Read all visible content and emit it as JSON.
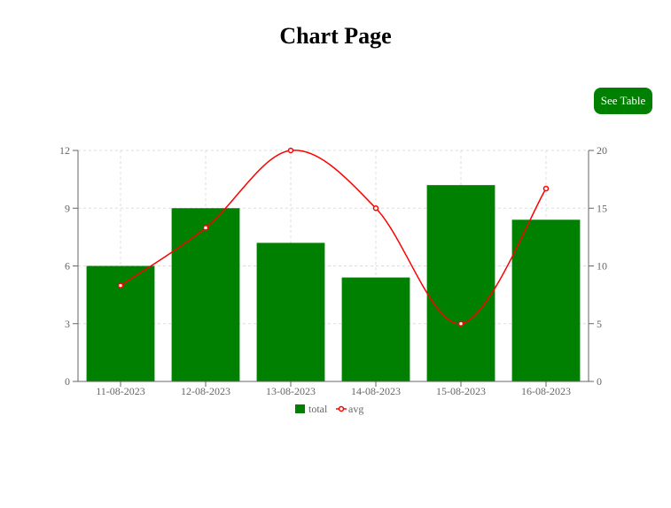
{
  "page": {
    "title": "Chart Page",
    "see_table_label": "See Table"
  },
  "colors": {
    "bar": "#008000",
    "line": "#ff0000",
    "grid": "#dddddd",
    "axis": "#666666"
  },
  "chart_data": {
    "type": "bar",
    "categories": [
      "11-08-2023",
      "12-08-2023",
      "13-08-2023",
      "14-08-2023",
      "15-08-2023",
      "16-08-2023"
    ],
    "series": [
      {
        "name": "total",
        "type": "bar",
        "axis": "left",
        "values": [
          6,
          9,
          7.2,
          5.4,
          10.2,
          8.4
        ]
      },
      {
        "name": "avg",
        "type": "line",
        "axis": "right",
        "values": [
          8.3,
          13.3,
          20,
          15,
          5,
          16.7
        ]
      }
    ],
    "y_left": {
      "ylim": [
        0,
        12
      ],
      "ticks": [
        0,
        3,
        6,
        9,
        12
      ]
    },
    "y_right": {
      "ylim": [
        0,
        20
      ],
      "ticks": [
        0,
        5,
        10,
        15,
        20
      ]
    },
    "grid": true,
    "legend": "bottom-center"
  }
}
